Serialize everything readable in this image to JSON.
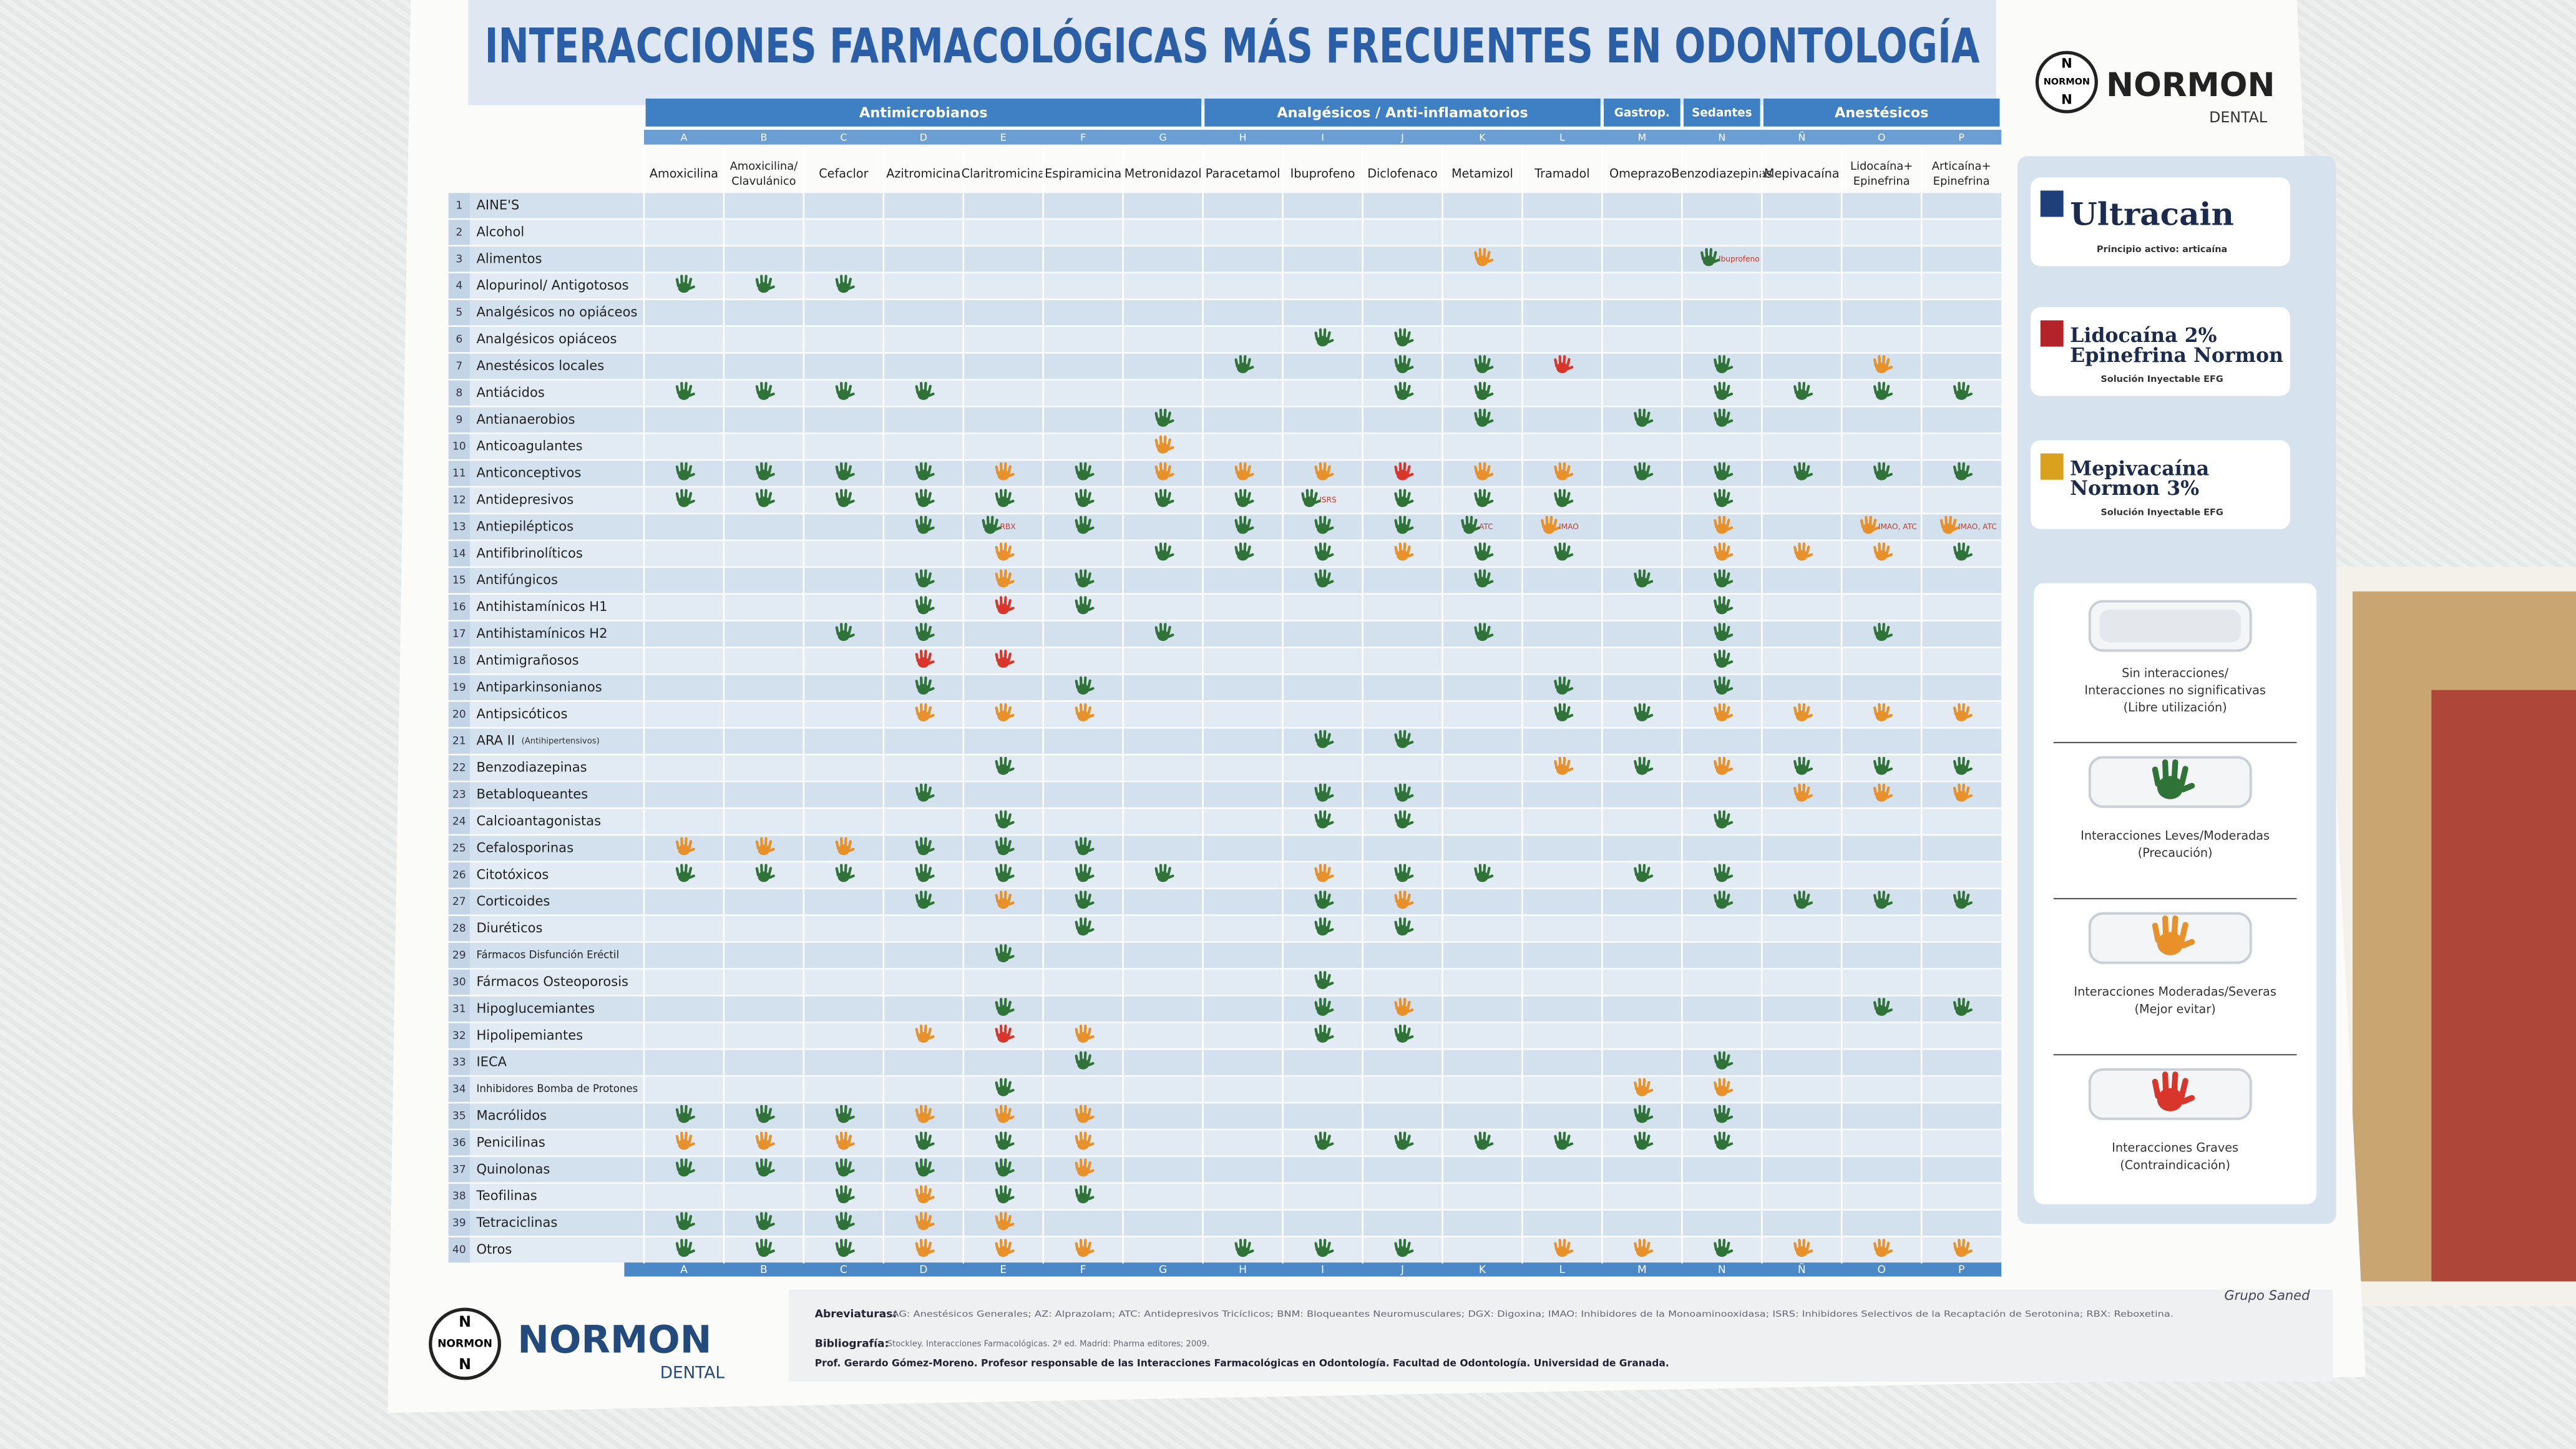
{
  "header": {
    "title": "INTERACCIONES FARMACOLÓGICAS MÁS FRECUENTES EN ODONTOLOGÍA",
    "brand_initial": "N",
    "brand": "NORMON",
    "brand_sub": "DENTAL"
  },
  "table": {
    "groups": [
      {
        "label": "Antimicrobianos",
        "span": 7
      },
      {
        "label": "Analgésicos / Anti-inflamatorios",
        "span": 5
      },
      {
        "label": "Gastrop.",
        "span": 1
      },
      {
        "label": "Sedantes",
        "span": 1
      },
      {
        "label": "Anestésicos",
        "span": 3
      }
    ],
    "columns": [
      {
        "letter": "A",
        "name": [
          "Amoxicilina"
        ]
      },
      {
        "letter": "B",
        "name": [
          "Amoxicilina/",
          "Clavulánico"
        ]
      },
      {
        "letter": "C",
        "name": [
          "Cefaclor"
        ]
      },
      {
        "letter": "D",
        "name": [
          "Azitromicina"
        ]
      },
      {
        "letter": "E",
        "name": [
          "Claritromicina"
        ]
      },
      {
        "letter": "F",
        "name": [
          "Espiramicina"
        ]
      },
      {
        "letter": "G",
        "name": [
          "Metronidazol"
        ]
      },
      {
        "letter": "H",
        "name": [
          "Paracetamol"
        ]
      },
      {
        "letter": "I",
        "name": [
          "Ibuprofeno"
        ]
      },
      {
        "letter": "J",
        "name": [
          "Diclofenaco"
        ]
      },
      {
        "letter": "K",
        "name": [
          "Metamizol"
        ]
      },
      {
        "letter": "L",
        "name": [
          "Tramadol"
        ]
      },
      {
        "letter": "M",
        "name": [
          "Omeprazol"
        ]
      },
      {
        "letter": "N",
        "name": [
          "Benzodiazepinas"
        ]
      },
      {
        "letter": "Ñ",
        "name": [
          "Mepivacaína"
        ]
      },
      {
        "letter": "O",
        "name": [
          "Lidocaína+",
          "Epinefrina"
        ]
      },
      {
        "letter": "P",
        "name": [
          "Articaína+",
          "Epinefrina"
        ]
      }
    ],
    "rows": [
      {
        "num": 1,
        "label": "AINE'S",
        "cells": {}
      },
      {
        "num": 2,
        "label": "Alcohol",
        "cells": {}
      },
      {
        "num": 3,
        "label": "Alimentos",
        "cells": {
          "K": 2,
          "N": 1
        },
        "notes": {
          "N": "Ibuprofeno"
        }
      },
      {
        "num": 4,
        "label": "Alopurinol/ Antigotosos",
        "cells": {
          "A": 1,
          "B": 1,
          "C": 1
        }
      },
      {
        "num": 5,
        "label": "Analgésicos no opiáceos",
        "cells": {}
      },
      {
        "num": 6,
        "label": "Analgésicos opiáceos",
        "cells": {
          "I": 1,
          "J": 1
        }
      },
      {
        "num": 7,
        "label": "Anestésicos locales",
        "cells": {
          "H": 1,
          "J": 1,
          "K": 1,
          "L": 3,
          "N": 1,
          "O": 2
        }
      },
      {
        "num": 8,
        "label": "Antiácidos",
        "cells": {
          "A": 1,
          "B": 1,
          "C": 1,
          "D": 1,
          "J": 1,
          "K": 1,
          "N": 1,
          "Ñ": 1,
          "O": 1,
          "P": 1
        }
      },
      {
        "num": 9,
        "label": "Antianaerobios",
        "cells": {
          "G": 1,
          "K": 1,
          "M": 1,
          "N": 1
        }
      },
      {
        "num": 10,
        "label": "Anticoagulantes",
        "cells": {
          "G": 2
        }
      },
      {
        "num": 11,
        "label": "Anticonceptivos",
        "cells": {
          "A": 1,
          "B": 1,
          "C": 1,
          "D": 1,
          "E": 2,
          "F": 1,
          "G": 2,
          "H": 2,
          "I": 2,
          "J": 3,
          "K": 2,
          "L": 2,
          "M": 1,
          "N": 1,
          "Ñ": 1,
          "O": 1,
          "P": 1
        }
      },
      {
        "num": 12,
        "label": "Antidepresivos",
        "cells": {
          "A": 1,
          "B": 1,
          "C": 1,
          "D": 1,
          "E": 1,
          "F": 1,
          "G": 1,
          "H": 1,
          "I": 1,
          "J": 1,
          "K": 1,
          "L": 1,
          "N": 1
        },
        "notes": {
          "I": "ISRS"
        }
      },
      {
        "num": 13,
        "label": "Antiepilépticos",
        "cells": {
          "D": 1,
          "E": 1,
          "F": 1,
          "H": 1,
          "I": 1,
          "J": 1,
          "K": 1,
          "L": 2,
          "N": 2,
          "O": 2,
          "P": 2
        },
        "notes": {
          "E": "RBX",
          "K": "ATC",
          "L": "IMAO",
          "O": "IMAO, ATC",
          "P": "IMAO, ATC"
        }
      },
      {
        "num": 14,
        "label": "Antifibrinolíticos",
        "cells": {
          "E": 2,
          "G": 1,
          "H": 1,
          "I": 1,
          "J": 2,
          "K": 1,
          "L": 1,
          "N": 2,
          "Ñ": 2,
          "O": 2,
          "P": 1
        }
      },
      {
        "num": 15,
        "label": "Antifúngicos",
        "cells": {
          "D": 1,
          "E": 2,
          "F": 1,
          "I": 1,
          "K": 1,
          "M": 1,
          "N": 1
        }
      },
      {
        "num": 16,
        "label": "Antihistamínicos H1",
        "cells": {
          "D": 1,
          "E": 3,
          "F": 1,
          "N": 1
        }
      },
      {
        "num": 17,
        "label": "Antihistamínicos H2",
        "cells": {
          "C": 1,
          "D": 1,
          "G": 1,
          "K": 1,
          "N": 1,
          "O": 1
        }
      },
      {
        "num": 18,
        "label": "Antimigrañosos",
        "cells": {
          "D": 3,
          "E": 3,
          "N": 1
        }
      },
      {
        "num": 19,
        "label": "Antiparkinsonianos",
        "cells": {
          "D": 1,
          "F": 1,
          "L": 1,
          "N": 1
        }
      },
      {
        "num": 20,
        "label": "Antipsicóticos",
        "cells": {
          "D": 2,
          "E": 2,
          "F": 2,
          "L": 1,
          "M": 1,
          "N": 2,
          "Ñ": 2,
          "O": 2,
          "P": 2
        }
      },
      {
        "num": 21,
        "label": "ARA II",
        "sublabel": "(Antihipertensivos)",
        "cells": {
          "I": 1,
          "J": 1
        }
      },
      {
        "num": 22,
        "label": "Benzodiazepinas",
        "cells": {
          "E": 1,
          "L": 2,
          "M": 1,
          "N": 2,
          "Ñ": 1,
          "O": 1,
          "P": 1
        }
      },
      {
        "num": 23,
        "label": "Betabloqueantes",
        "cells": {
          "D": 1,
          "I": 1,
          "J": 1,
          "Ñ": 2,
          "O": 2,
          "P": 2
        }
      },
      {
        "num": 24,
        "label": "Calcioantagonistas",
        "cells": {
          "E": 1,
          "I": 1,
          "J": 1,
          "N": 1
        }
      },
      {
        "num": 25,
        "label": "Cefalosporinas",
        "cells": {
          "A": 2,
          "B": 2,
          "C": 2,
          "D": 1,
          "E": 1,
          "F": 1
        }
      },
      {
        "num": 26,
        "label": "Citotóxicos",
        "cells": {
          "A": 1,
          "B": 1,
          "C": 1,
          "D": 1,
          "E": 1,
          "F": 1,
          "G": 1,
          "I": 2,
          "J": 1,
          "K": 1,
          "M": 1,
          "N": 1
        }
      },
      {
        "num": 27,
        "label": "Corticoides",
        "cells": {
          "D": 1,
          "E": 2,
          "F": 1,
          "I": 1,
          "J": 2,
          "N": 1,
          "Ñ": 1,
          "O": 1,
          "P": 1
        }
      },
      {
        "num": 28,
        "label": "Diuréticos",
        "cells": {
          "F": 1,
          "I": 1,
          "J": 1
        }
      },
      {
        "num": 29,
        "label": "Fármacos Disfunción Eréctil",
        "cells": {
          "E": 1
        }
      },
      {
        "num": 30,
        "label": "Fármacos Osteoporosis",
        "cells": {
          "I": 1
        }
      },
      {
        "num": 31,
        "label": "Hipoglucemiantes",
        "cells": {
          "E": 1,
          "I": 1,
          "J": 2,
          "O": 1,
          "P": 1
        }
      },
      {
        "num": 32,
        "label": "Hipolipemiantes",
        "cells": {
          "D": 2,
          "E": 3,
          "F": 2,
          "I": 1,
          "J": 1
        }
      },
      {
        "num": 33,
        "label": "IECA",
        "cells": {
          "F": 1,
          "N": 1
        }
      },
      {
        "num": 34,
        "label": "Inhibidores Bomba de Protones",
        "cells": {
          "E": 1,
          "M": 2,
          "N": 2
        }
      },
      {
        "num": 35,
        "label": "Macrólidos",
        "cells": {
          "A": 1,
          "B": 1,
          "C": 1,
          "D": 2,
          "E": 2,
          "F": 2,
          "M": 1,
          "N": 1
        }
      },
      {
        "num": 36,
        "label": "Penicilinas",
        "cells": {
          "A": 2,
          "B": 2,
          "C": 2,
          "D": 1,
          "E": 1,
          "F": 2,
          "I": 1,
          "J": 1,
          "K": 1,
          "L": 1,
          "M": 1,
          "N": 1
        }
      },
      {
        "num": 37,
        "label": "Quinolonas",
        "cells": {
          "A": 1,
          "B": 1,
          "C": 1,
          "D": 1,
          "E": 1,
          "F": 2
        }
      },
      {
        "num": 38,
        "label": "Teofilinas",
        "cells": {
          "C": 1,
          "D": 2,
          "E": 1,
          "F": 1
        }
      },
      {
        "num": 39,
        "label": "Tetraciclinas",
        "cells": {
          "A": 1,
          "B": 1,
          "C": 1,
          "D": 2,
          "E": 2
        }
      },
      {
        "num": 40,
        "label": "Otros",
        "cells": {
          "A": 1,
          "B": 1,
          "C": 1,
          "D": 2,
          "E": 2,
          "F": 2,
          "H": 1,
          "I": 1,
          "J": 1,
          "L": 2,
          "M": 2,
          "N": 1,
          "Ñ": 2,
          "O": 2,
          "P": 2
        }
      }
    ]
  },
  "products": [
    {
      "lines": [
        "Ultracain"
      ],
      "sub": "Principio activo: articaína"
    },
    {
      "lines": [
        "Lidocaína 2%",
        "Epinefrina Normon"
      ],
      "sub": "Solución Inyectable EFG"
    },
    {
      "lines": [
        "Mepivacaína",
        "Normon 3%"
      ],
      "sub": "Solución Inyectable EFG"
    }
  ],
  "legend": {
    "items": [
      {
        "lines": [
          "Sin interacciones/",
          "Interacciones no significativas",
          "(Libre utilización)"
        ],
        "color": "#e4e8ec"
      },
      {
        "lines": [
          "Interacciones Leves/Moderadas",
          "(Precaución)"
        ],
        "color": "#2f7338"
      },
      {
        "lines": [
          "Interacciones Moderadas/Severas",
          "(Mejor evitar)"
        ],
        "color": "#e8902a"
      },
      {
        "lines": [
          "Interacciones Graves",
          "(Contraindicación)"
        ],
        "color": "#d8362b"
      }
    ]
  },
  "footer": {
    "abbreviations_label": "Abreviaturas:",
    "abbreviations": "AG: Anestésicos Generales; AZ: Alprazolam; ATC: Antidepresivos Tricíclicos; BNM: Bloqueantes Neuromusculares; DGX: Digoxina; IMAO: Inhibidores de la Monoaminooxidasa; ISRS: Inhibidores Selectivos de la Recaptación de Serotonina; RBX: Reboxetina.",
    "bibliography_label": "Bibliografía:",
    "bibliography": "Stockley. Interacciones Farmacológicas. 2ª ed. Madrid: Pharma editores; 2009.",
    "author": "Prof. Gerardo Gómez-Moreno. Profesor responsable de las Interacciones Farmacológicas en Odontología. Facultad de Odontología. Universidad de Granada.",
    "publisher": "Grupo Saned"
  }
}
